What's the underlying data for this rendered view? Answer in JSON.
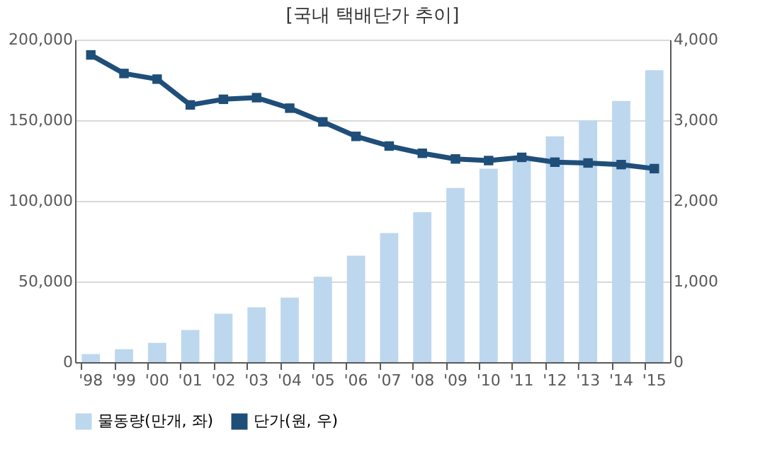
{
  "chart_data": {
    "type": "bar",
    "title": "[국내 택배단가 추이]",
    "categories": [
      "'98",
      "'99",
      "'00",
      "'01",
      "'02",
      "'03",
      "'04",
      "'05",
      "'06",
      "'07",
      "'08",
      "'09",
      "'10",
      "'11",
      "'12",
      "'13",
      "'14",
      "'15"
    ],
    "series": [
      {
        "name": "물동량(만개, 좌)",
        "color": "#bdd7ee",
        "values": [
          5000,
          8000,
          12000,
          20000,
          30000,
          34000,
          40000,
          53000,
          66000,
          80000,
          93000,
          108000,
          120000,
          126000,
          140000,
          150000,
          162000,
          181000
        ]
      },
      {
        "name": "단가(원, 우)",
        "color": "#1f4e79",
        "type": "line",
        "axis": "y2",
        "values": [
          3810,
          3580,
          3510,
          3190,
          3260,
          3280,
          3150,
          2980,
          2800,
          2680,
          2590,
          2520,
          2500,
          2540,
          2480,
          2470,
          2450,
          2400
        ]
      }
    ],
    "ylim": [
      0,
      200000
    ],
    "yticks": [
      0,
      {
        "value": 50000,
        "label": "50,000"
      },
      {
        "value": 100000,
        "label": "100,000"
      },
      {
        "value": 150000,
        "label": "150,000"
      },
      {
        "value": 200000,
        "label": "200,000"
      }
    ],
    "y2lim": [
      0,
      4000
    ],
    "y2ticks": [
      0,
      {
        "value": 1000,
        "label": "1,000"
      },
      {
        "value": 2000,
        "label": "2,000"
      },
      {
        "value": 3000,
        "label": "3,000"
      },
      {
        "value": 4000,
        "label": "4,000"
      }
    ],
    "grid": "y",
    "legend": "bottom",
    "marker": "square",
    "line_style": "solid"
  }
}
